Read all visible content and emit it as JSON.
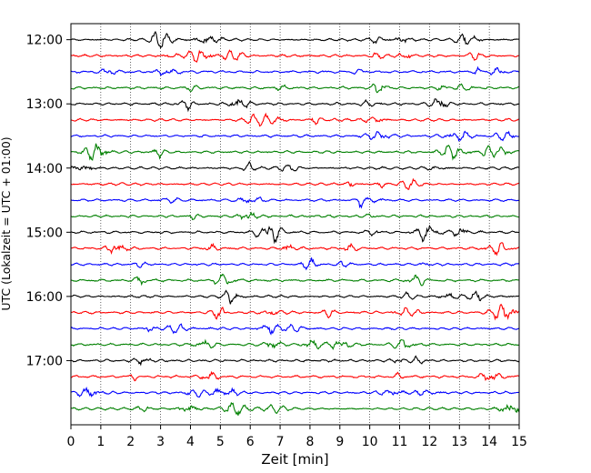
{
  "chart_data": {
    "type": "line",
    "xlabel": "Zeit  [min]",
    "ylabel": "UTC (Lokalzeit = UTC + 01:00)",
    "xlim": [
      0,
      15
    ],
    "x_ticks": [
      0,
      1,
      2,
      3,
      4,
      5,
      6,
      7,
      8,
      9,
      10,
      11,
      12,
      13,
      14,
      15
    ],
    "x_grid": true,
    "y_ticks": [
      "12:00",
      "13:00",
      "14:00",
      "15:00",
      "16:00",
      "17:00"
    ],
    "trace_start": "12:00",
    "trace_end": "17:45",
    "trace_interval_min": 15,
    "trace_count": 24,
    "trace_colors": [
      "#000000",
      "#ff0000",
      "#0000ff",
      "#008000"
    ],
    "y_range": [
      "11:45",
      "18:00"
    ]
  }
}
